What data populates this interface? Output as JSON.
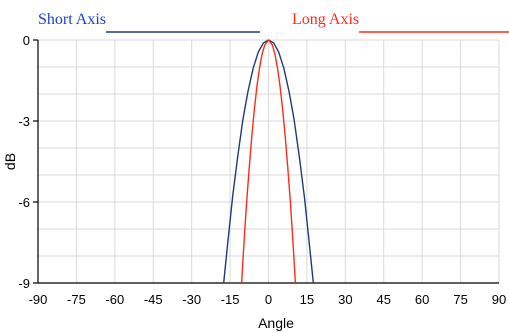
{
  "chart_data": {
    "type": "line",
    "title": "",
    "xlabel": "Angle",
    "ylabel": "dB",
    "xlim": [
      -90,
      90
    ],
    "ylim": [
      -9,
      0
    ],
    "xticks": [
      -90,
      -75,
      -60,
      -45,
      -30,
      -15,
      0,
      15,
      30,
      45,
      60,
      75,
      90
    ],
    "yticks": [
      0,
      -3,
      -6,
      -9
    ],
    "grid": true,
    "legend_position": "top",
    "series": [
      {
        "name": "Short Axis",
        "color": "#1f3a7a",
        "legend_color": "#1a3fcc",
        "x": [
          -17.5,
          -16,
          -14,
          -12,
          -10,
          -8,
          -6,
          -4,
          -2,
          0,
          2,
          4,
          6,
          8,
          10,
          12,
          14,
          16,
          17.5
        ],
        "y": [
          -9,
          -7.6,
          -5.8,
          -4.3,
          -2.95,
          -1.9,
          -1.05,
          -0.45,
          -0.11,
          0,
          -0.11,
          -0.45,
          -1.05,
          -1.9,
          -2.95,
          -4.3,
          -5.8,
          -7.6,
          -9
        ]
      },
      {
        "name": "Long Axis",
        "color": "#ff2a1a",
        "legend_color": "#ff2a1a",
        "x": [
          -10.5,
          -9.5,
          -8.5,
          -7.5,
          -6.5,
          -5.5,
          -4.5,
          -3.5,
          -2.5,
          -1.5,
          0,
          1.5,
          2.5,
          3.5,
          4.5,
          5.5,
          6.5,
          7.5,
          8.5,
          9.5,
          10.5
        ],
        "y": [
          -9,
          -7.4,
          -5.95,
          -4.7,
          -3.55,
          -2.55,
          -1.7,
          -1.03,
          -0.52,
          -0.19,
          0,
          -0.19,
          -0.52,
          -1.03,
          -1.7,
          -2.55,
          -3.55,
          -4.7,
          -5.95,
          -7.4,
          -9
        ]
      }
    ]
  }
}
